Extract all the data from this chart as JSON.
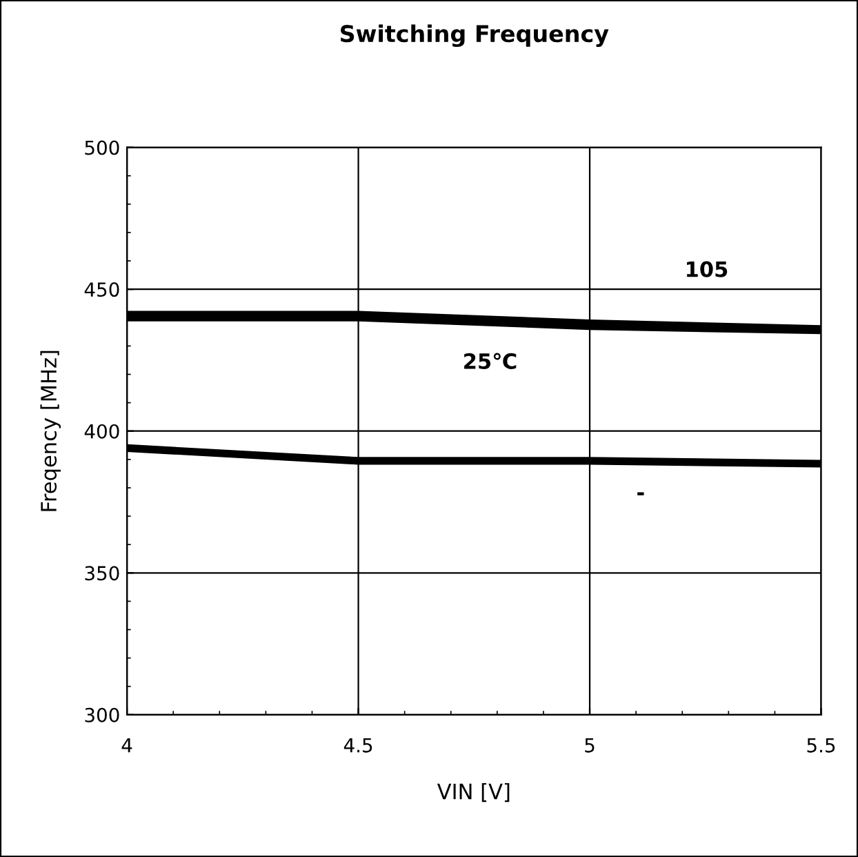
{
  "chart_data": {
    "type": "line",
    "title": "Switching Frequency",
    "xlabel": "VIN [V]",
    "ylabel": "Freqency [MHz]",
    "x": [
      4,
      4.5,
      5,
      5.5
    ],
    "series": [
      {
        "color": "#000000",
        "values": [
          441,
          441,
          438,
          436
        ]
      },
      {
        "color": "#000000",
        "values": [
          440,
          440,
          437,
          435.5
        ]
      },
      {
        "color": "#000000",
        "values": [
          394,
          389.5,
          389.5,
          388.5
        ]
      }
    ],
    "xlim": [
      4,
      5.5
    ],
    "xticks": [
      4,
      4.5,
      5,
      5.5
    ],
    "ylim": [
      300,
      500
    ],
    "yticks": [
      300,
      350,
      400,
      450,
      500
    ],
    "grid": true,
    "marker": "none",
    "line_style": "solid",
    "annotations": [
      "105",
      "25℃",
      "-"
    ]
  }
}
